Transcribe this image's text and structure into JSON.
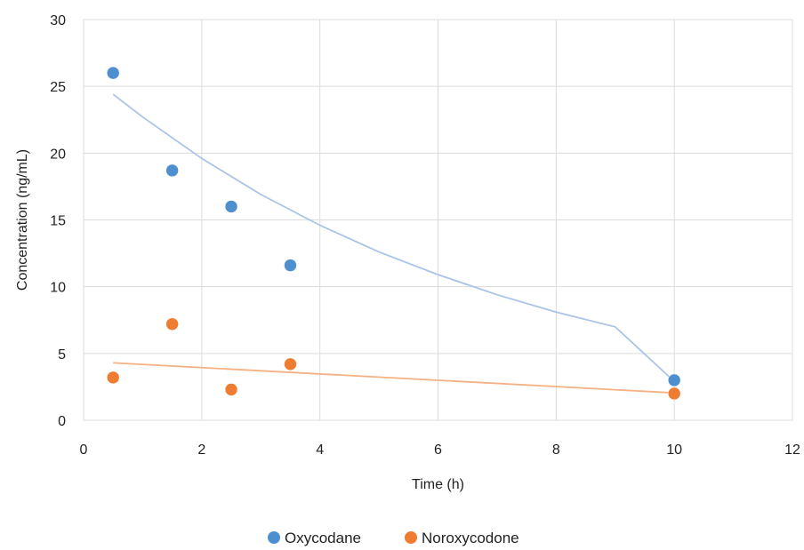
{
  "chart_data": {
    "type": "scatter",
    "title": "",
    "xlabel": "Time (h)",
    "ylabel": "Concentration (ng/mL)",
    "xlim": [
      0,
      12
    ],
    "ylim": [
      0,
      30
    ],
    "xticks": [
      0,
      2,
      4,
      6,
      8,
      10,
      12
    ],
    "yticks": [
      0,
      5,
      10,
      15,
      20,
      25,
      30
    ],
    "grid": true,
    "legend_position": "bottom",
    "series": [
      {
        "name": "Oxycodane",
        "color": "#4e8fd0",
        "trend_color": "#a9c4e6",
        "trendline": "exponential",
        "x": [
          0.5,
          1.5,
          2.5,
          3.5,
          10
        ],
        "y": [
          26.0,
          18.7,
          16.0,
          11.6,
          3.0
        ],
        "trend_points": [
          [
            0.5,
            24.4
          ],
          [
            1,
            22.7
          ],
          [
            2,
            19.6
          ],
          [
            3,
            16.9
          ],
          [
            4,
            14.6
          ],
          [
            5,
            12.6
          ],
          [
            6,
            10.9
          ],
          [
            7,
            9.4
          ],
          [
            8,
            8.1
          ],
          [
            9,
            6.99
          ],
          [
            10,
            2.9
          ]
        ]
      },
      {
        "name": "Noroxycodone",
        "color": "#ee7d31",
        "trend_color": "#f4b183",
        "trendline": "exponential",
        "x": [
          0.5,
          1.5,
          2.5,
          3.5,
          10
        ],
        "y": [
          3.2,
          7.2,
          2.3,
          4.2,
          2.0
        ],
        "trend_points": [
          [
            0.5,
            4.3
          ],
          [
            10,
            2.05
          ]
        ]
      }
    ]
  }
}
